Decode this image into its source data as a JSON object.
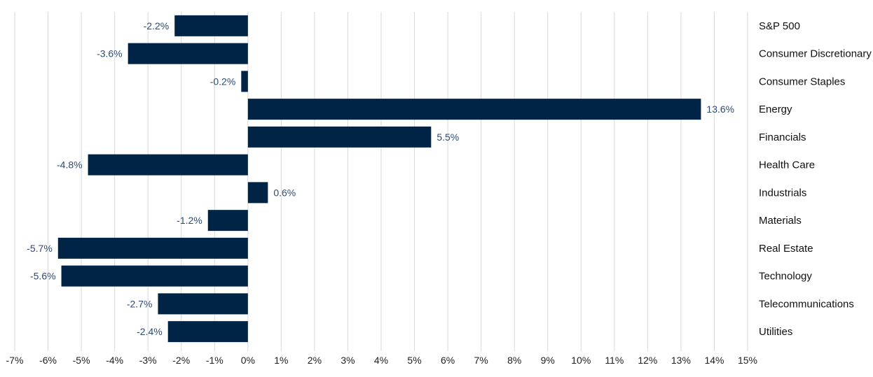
{
  "chart_data": {
    "type": "bar",
    "orientation": "horizontal",
    "title": "",
    "xlabel": "",
    "ylabel": "",
    "xlim": [
      -7,
      15
    ],
    "x_ticks": [
      -7,
      -6,
      -5,
      -4,
      -3,
      -2,
      -1,
      0,
      1,
      2,
      3,
      4,
      5,
      6,
      7,
      8,
      9,
      10,
      11,
      12,
      13,
      14,
      15
    ],
    "x_tick_labels": [
      "-7%",
      "-6%",
      "-5%",
      "-4%",
      "-3%",
      "-2%",
      "-1%",
      "0%",
      "1%",
      "2%",
      "3%",
      "4%",
      "5%",
      "6%",
      "7%",
      "8%",
      "9%",
      "10%",
      "11%",
      "12%",
      "13%",
      "14%",
      "15%"
    ],
    "grid": true,
    "legend": "none",
    "categories": [
      "S&P 500",
      "Consumer Discretionary",
      "Consumer Staples",
      "Energy",
      "Financials",
      "Health Care",
      "Industrials",
      "Materials",
      "Real Estate",
      "Technology",
      "Telecommunications",
      "Utilities"
    ],
    "values": [
      -2.2,
      -3.6,
      -0.2,
      13.6,
      5.5,
      -4.8,
      0.6,
      -1.2,
      -5.7,
      -5.6,
      -2.7,
      -2.4
    ],
    "data_labels": [
      "-2.2%",
      "-3.6%",
      "-0.2%",
      "13.6%",
      "5.5%",
      "-4.8%",
      "0.6%",
      "-1.2%",
      "-5.7%",
      "-5.6%",
      "-2.7%",
      "-2.4%"
    ],
    "colors": {
      "bar": "#002445",
      "grid": "#d9d9d9",
      "label": "#2d4a73",
      "text": "#111111"
    }
  }
}
